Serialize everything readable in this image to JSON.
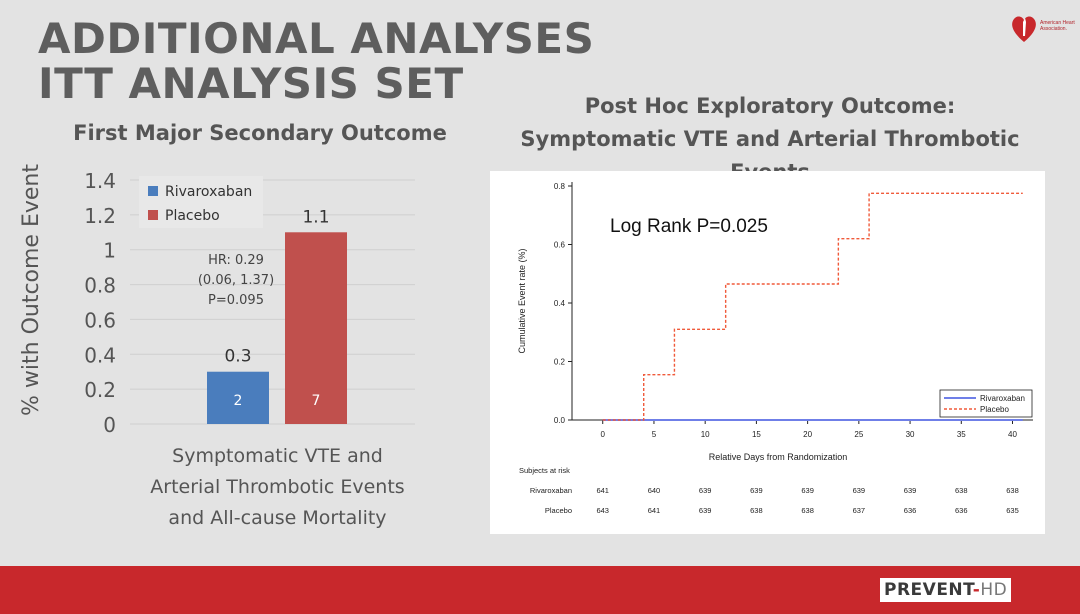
{
  "slide": {
    "title_line1": "ADDITIONAL ANALYSES",
    "title_line2": "ITT ANALYSIS SET",
    "logo_text": "American Heart Association.",
    "brand_main": "PREVENT",
    "brand_dash": "-",
    "brand_suffix": "HD"
  },
  "left_panel": {
    "subtitle": "First Major Secondary Outcome",
    "caption_lines": [
      "Symptomatic VTE and",
      "Arterial Thrombotic Events",
      "and All-cause Mortality"
    ],
    "hr_lines": [
      "HR: 0.29",
      "(0.06, 1.37)",
      "P=0.095"
    ]
  },
  "right_panel": {
    "subtitle_line1": "Post Hoc Exploratory Outcome:",
    "subtitle_line2": "Symptomatic VTE and Arterial Thrombotic Events",
    "annotation": "Log Rank P=0.025",
    "risk_table": {
      "title": "Subjects at risk",
      "rows": [
        {
          "label": "Rivaroxaban",
          "values": [
            641,
            640,
            639,
            639,
            639,
            639,
            639,
            638,
            638
          ]
        },
        {
          "label": "Placebo",
          "values": [
            643,
            641,
            639,
            638,
            638,
            637,
            636,
            636,
            635
          ]
        }
      ]
    }
  },
  "colors": {
    "rivaroxaban": "#4a7dbd",
    "placebo": "#c0504d",
    "km_rivaroxaban": "#6f7fe8",
    "km_placebo": "#f05a3a",
    "footer": "#c8282c"
  },
  "chart_data": [
    {
      "type": "bar",
      "title": "First Major Secondary Outcome",
      "ylabel": "% with Outcome Event",
      "xlabel": "Symptomatic VTE and Arterial Thrombotic Events and All-cause Mortality",
      "ylim": [
        0,
        1.4
      ],
      "yticks": [
        0,
        0.2,
        0.4,
        0.6,
        0.8,
        1,
        1.2,
        1.4
      ],
      "ytick_labels": [
        "0",
        "0.2",
        "0.4",
        "0.6",
        "0.8",
        "1",
        "1.2",
        "1.4"
      ],
      "grid": true,
      "legend_position": "top-left",
      "series": [
        {
          "name": "Rivaroxaban",
          "value": 0.3,
          "label": "0.3",
          "count": "2"
        },
        {
          "name": "Placebo",
          "value": 1.1,
          "label": "1.1",
          "count": "7"
        }
      ]
    },
    {
      "type": "line",
      "title": "Post Hoc Exploratory Outcome: Symptomatic VTE and Arterial Thrombotic Events",
      "xlabel": "Relative Days from Randomization",
      "ylabel": "Cumulative Event rate (%)",
      "xlim": [
        -3,
        42
      ],
      "ylim": [
        0,
        0.8
      ],
      "xticks": [
        0,
        5,
        10,
        15,
        20,
        25,
        30,
        35,
        40
      ],
      "xtick_labels": [
        "0",
        "5",
        "10",
        "15",
        "20",
        "25",
        "30",
        "35",
        "40"
      ],
      "yticks": [
        0,
        0.2,
        0.4,
        0.6,
        0.8
      ],
      "ytick_labels": [
        "0.0",
        "0.2",
        "0.4",
        "0.6",
        "0.8"
      ],
      "grid": false,
      "legend_position": "bottom-right",
      "step": true,
      "series": [
        {
          "name": "Rivaroxaban",
          "x": [
            0,
            41
          ],
          "y": [
            0,
            0
          ],
          "style": "solid"
        },
        {
          "name": "Placebo",
          "x": [
            0,
            4,
            7,
            12,
            23,
            26,
            41
          ],
          "y": [
            0,
            0.155,
            0.31,
            0.465,
            0.62,
            0.775,
            0.775
          ],
          "style": "dashed"
        }
      ]
    }
  ]
}
